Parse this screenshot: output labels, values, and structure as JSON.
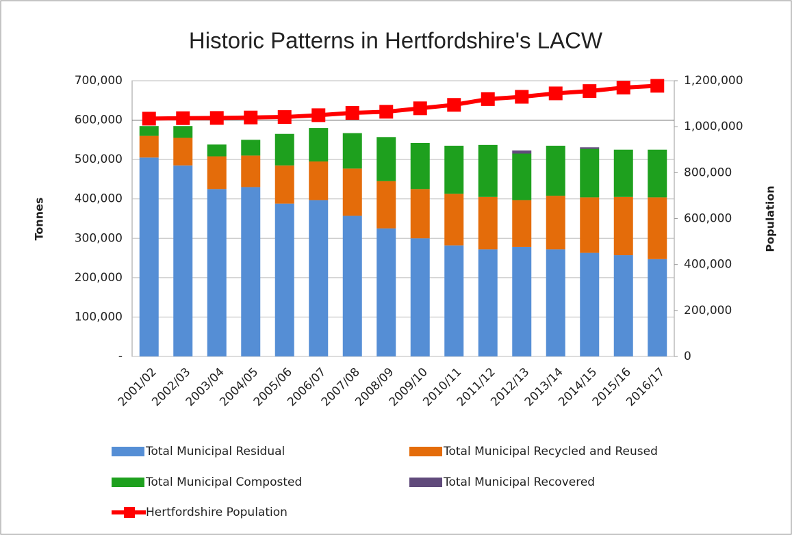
{
  "chart_data": {
    "type": "bar",
    "title": "Historic Patterns in Hertfordshire's LACW",
    "y_label": "Tonnes",
    "y2_label": "Population",
    "categories": [
      "2001/02",
      "2002/03",
      "2003/04",
      "2004/05",
      "2005/06",
      "2006/07",
      "2007/08",
      "2008/09",
      "2009/10",
      "2010/11",
      "2011/12",
      "2012/13",
      "2013/14",
      "2014/15",
      "2015/16",
      "2016/17"
    ],
    "series": [
      {
        "name": "Total Municipal Residual",
        "color": "#558ed5",
        "values": [
          505000,
          485000,
          425000,
          430000,
          388000,
          397000,
          357000,
          325000,
          300000,
          282000,
          272000,
          278000,
          272000,
          263000,
          257000,
          247000
        ]
      },
      {
        "name": "Total Municipal Recycled and Reused",
        "color": "#e46c0a",
        "values": [
          55000,
          70000,
          83000,
          80000,
          97000,
          98000,
          120000,
          120000,
          125000,
          131000,
          133000,
          119000,
          136000,
          141000,
          148000,
          157000
        ]
      },
      {
        "name": "Total Municipal Composted",
        "color": "#1ea01e",
        "values": [
          25000,
          30000,
          30000,
          40000,
          80000,
          85000,
          90000,
          112000,
          117000,
          122000,
          132000,
          118000,
          127000,
          123000,
          120000,
          121000
        ]
      },
      {
        "name": "Total Municipal Recovered",
        "color": "#604a7b",
        "values": [
          0,
          0,
          0,
          0,
          0,
          0,
          0,
          0,
          0,
          0,
          0,
          8000,
          0,
          4000,
          0,
          0
        ]
      },
      {
        "name": "Hertfordshire Population",
        "color": "#ff0000",
        "axis": "y2",
        "type": "line",
        "values": [
          1035000,
          1037000,
          1038000,
          1040000,
          1042000,
          1050000,
          1060000,
          1065000,
          1080000,
          1095000,
          1120000,
          1130000,
          1145000,
          1155000,
          1170000,
          1178000
        ]
      }
    ],
    "stacked": true,
    "ylim": [
      0,
      700000
    ],
    "yticks": [
      {
        "value": 0,
        "label": "-"
      },
      {
        "value": 100000,
        "label": "100,000"
      },
      {
        "value": 200000,
        "label": "200,000"
      },
      {
        "value": 300000,
        "label": "300,000"
      },
      {
        "value": 400000,
        "label": "400,000"
      },
      {
        "value": 500000,
        "label": "500,000"
      },
      {
        "value": 600000,
        "label": "600,000"
      },
      {
        "value": 700000,
        "label": "700,000"
      }
    ],
    "y2lim": [
      0,
      1200000
    ],
    "y2ticks": [
      0,
      {
        "value": 200000,
        "label": "200,000"
      },
      {
        "value": 400000,
        "label": "400,000"
      },
      {
        "value": 600000,
        "label": "600,000"
      },
      {
        "value": 800000,
        "label": "800,000"
      },
      {
        "value": 1000000,
        "label": "1,000,000"
      },
      {
        "value": 1200000,
        "label": "1,200,000"
      }
    ],
    "grid": true,
    "legend": "bottom"
  }
}
